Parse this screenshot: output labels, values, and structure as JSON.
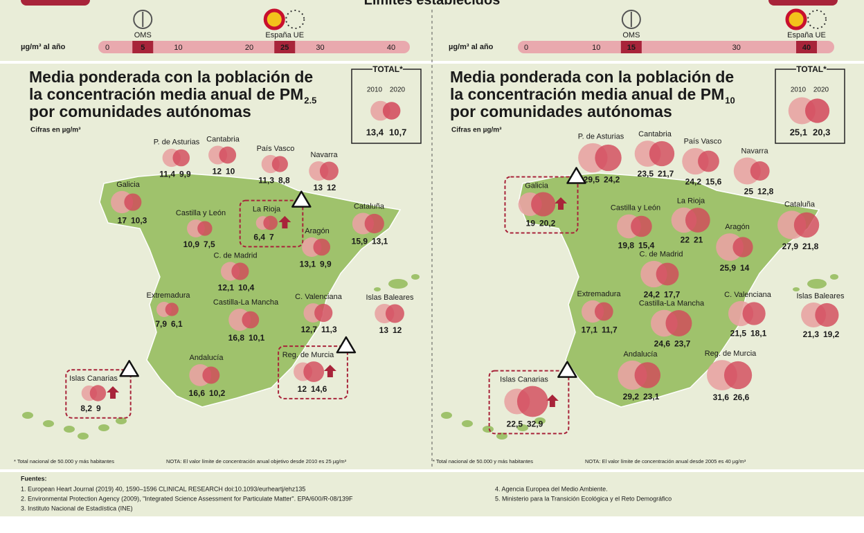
{
  "header": {
    "title": "Límites establecidos"
  },
  "panels": [
    {
      "scale": {
        "unit_label": "µg/m³ al año",
        "xlim": [
          0,
          40
        ],
        "ticks": [
          0,
          10,
          20,
          30,
          40
        ],
        "highlights": [
          {
            "value": 5,
            "org": "OMS"
          },
          {
            "value": 25,
            "org": "España UE"
          }
        ]
      },
      "title_lines": [
        "Media ponderada con la población de",
        "la concentración media anual de PM",
        "por comunidades autónomas"
      ],
      "title_sub": "2.5",
      "subtitle": "Cifras en µg/m³",
      "total": {
        "label": "TOTAL*",
        "years": [
          "2010",
          "2020"
        ],
        "values": [
          13.4,
          10.7
        ],
        "value_labels": [
          "13,4",
          "10,7"
        ]
      },
      "regions": [
        {
          "name": "P. de Asturias",
          "values": [
            11.4,
            9.9
          ],
          "value_labels": [
            "11,4",
            "9,9"
          ]
        },
        {
          "name": "Cantabria",
          "values": [
            12,
            10
          ],
          "value_labels": [
            "12",
            "10"
          ]
        },
        {
          "name": "País Vasco",
          "values": [
            11.3,
            8.8
          ],
          "value_labels": [
            "11,3",
            "8,8"
          ]
        },
        {
          "name": "Navarra",
          "values": [
            13,
            12
          ],
          "value_labels": [
            "13",
            "12"
          ]
        },
        {
          "name": "Galicia",
          "values": [
            17,
            10.3
          ],
          "value_labels": [
            "17",
            "10,3"
          ]
        },
        {
          "name": "Castilla y León",
          "values": [
            10.9,
            7.5
          ],
          "value_labels": [
            "10,9",
            "7,5"
          ]
        },
        {
          "name": "La Rioja",
          "values": [
            6.4,
            7
          ],
          "value_labels": [
            "6,4",
            "7"
          ],
          "warning": true
        },
        {
          "name": "Cataluña",
          "values": [
            15.9,
            13.1
          ],
          "value_labels": [
            "15,9",
            "13,1"
          ]
        },
        {
          "name": "Aragón",
          "values": [
            13.1,
            9.9
          ],
          "value_labels": [
            "13,1",
            "9,9"
          ]
        },
        {
          "name": "C. de Madrid",
          "values": [
            12.1,
            10.4
          ],
          "value_labels": [
            "12,1",
            "10,4"
          ]
        },
        {
          "name": "Extremadura",
          "values": [
            7.9,
            6.1
          ],
          "value_labels": [
            "7,9",
            "6,1"
          ]
        },
        {
          "name": "Castilla-La Mancha",
          "values": [
            16.8,
            10.1
          ],
          "value_labels": [
            "16,8",
            "10,1"
          ]
        },
        {
          "name": "C. Valenciana",
          "values": [
            12.7,
            11.3
          ],
          "value_labels": [
            "12,7",
            "11,3"
          ]
        },
        {
          "name": "Islas Baleares",
          "values": [
            13,
            12
          ],
          "value_labels": [
            "13",
            "12"
          ]
        },
        {
          "name": "Andalucía",
          "values": [
            16.6,
            10.2
          ],
          "value_labels": [
            "16,6",
            "10,2"
          ]
        },
        {
          "name": "Reg. de Murcia",
          "values": [
            12,
            14.6
          ],
          "value_labels": [
            "12",
            "14,6"
          ],
          "warning": true
        },
        {
          "name": "Islas Canarias",
          "values": [
            8.2,
            9
          ],
          "value_labels": [
            "8,2",
            "9"
          ],
          "warning": true
        }
      ],
      "notes": [
        "* Total nacional de 50.000 y más habitantes",
        "NOTA: El valor límite de concentración anual objetivo desde 2010 es 25 µg/m³"
      ]
    },
    {
      "scale": {
        "unit_label": "µg/m³ al año",
        "xlim": [
          0,
          40
        ],
        "ticks": [
          0,
          10,
          30
        ],
        "highlights": [
          {
            "value": 15,
            "org": "OMS"
          },
          {
            "value": 40,
            "org": "España UE"
          }
        ]
      },
      "title_lines": [
        "Media ponderada con la población de",
        "la concentración media anual de PM",
        "por comunidades autónomas"
      ],
      "title_sub": "10",
      "subtitle": "Cifras en µg/m³",
      "total": {
        "label": "TOTAL*",
        "years": [
          "2010",
          "2020"
        ],
        "values": [
          25.1,
          20.3
        ],
        "value_labels": [
          "25,1",
          "20,3"
        ]
      },
      "regions": [
        {
          "name": "P. de Asturias",
          "values": [
            29.5,
            24.2
          ],
          "value_labels": [
            "29,5",
            "24,2"
          ]
        },
        {
          "name": "Cantabria",
          "values": [
            23.5,
            21.7
          ],
          "value_labels": [
            "23,5",
            "21,7"
          ]
        },
        {
          "name": "País Vasco",
          "values": [
            24.2,
            15.6
          ],
          "value_labels": [
            "24,2",
            "15,6"
          ]
        },
        {
          "name": "Navarra",
          "values": [
            25,
            12.8
          ],
          "value_labels": [
            "25",
            "12,8"
          ]
        },
        {
          "name": "Galicia",
          "values": [
            19,
            20.2
          ],
          "value_labels": [
            "19",
            "20,2"
          ],
          "warning": true
        },
        {
          "name": "Castilla y León",
          "values": [
            19.8,
            15.4
          ],
          "value_labels": [
            "19,8",
            "15,4"
          ]
        },
        {
          "name": "La Rioja",
          "values": [
            22,
            21
          ],
          "value_labels": [
            "22",
            "21"
          ]
        },
        {
          "name": "Cataluña",
          "values": [
            27.9,
            21.8
          ],
          "value_labels": [
            "27,9",
            "21,8"
          ]
        },
        {
          "name": "Aragón",
          "values": [
            25.9,
            14
          ],
          "value_labels": [
            "25,9",
            "14"
          ]
        },
        {
          "name": "C. de Madrid",
          "values": [
            24.2,
            17.7
          ],
          "value_labels": [
            "24,2",
            "17,7"
          ]
        },
        {
          "name": "Extremadura",
          "values": [
            17.1,
            11.7
          ],
          "value_labels": [
            "17,1",
            "11,7"
          ]
        },
        {
          "name": "Castilla-La Mancha",
          "values": [
            24.6,
            23.7
          ],
          "value_labels": [
            "24,6",
            "23,7"
          ]
        },
        {
          "name": "C. Valenciana",
          "values": [
            21.5,
            18.1
          ],
          "value_labels": [
            "21,5",
            "18,1"
          ]
        },
        {
          "name": "Islas Baleares",
          "values": [
            21.3,
            19.2
          ],
          "value_labels": [
            "21,3",
            "19,2"
          ]
        },
        {
          "name": "Andalucía",
          "values": [
            29.2,
            23.1
          ],
          "value_labels": [
            "29,2",
            "23,1"
          ]
        },
        {
          "name": "Reg. de Murcia",
          "values": [
            31.6,
            26.6
          ],
          "value_labels": [
            "31,6",
            "26,6"
          ]
        },
        {
          "name": "Islas Canarias",
          "values": [
            22.5,
            32.9
          ],
          "value_labels": [
            "22,5",
            "32,9"
          ],
          "warning": true
        }
      ],
      "notes": [
        "* Total nacional de 50.000 y más habitantes",
        "NOTA: El valor límite de concentración anual desde 2005 es 40 µg/m³"
      ]
    }
  ],
  "sources": {
    "title": "Fuentes:",
    "items": [
      "1. European Heart Journal (2019) 40, 1590–1596 CLINICAL RESEARCH doi:10.1093/eurheartj/ehz135",
      "2. Environmental Protection Agency (2009), \"Integrated Science Assessment for Particulate Matter\". EPA/600/R-08/139F",
      "3. Instituto Nacional de Estadística (INE)",
      "4. Agencia Europea del Medio Ambiente.",
      "5. Ministerio para la Transición Ecológica y el Reto Demográfico"
    ]
  }
}
